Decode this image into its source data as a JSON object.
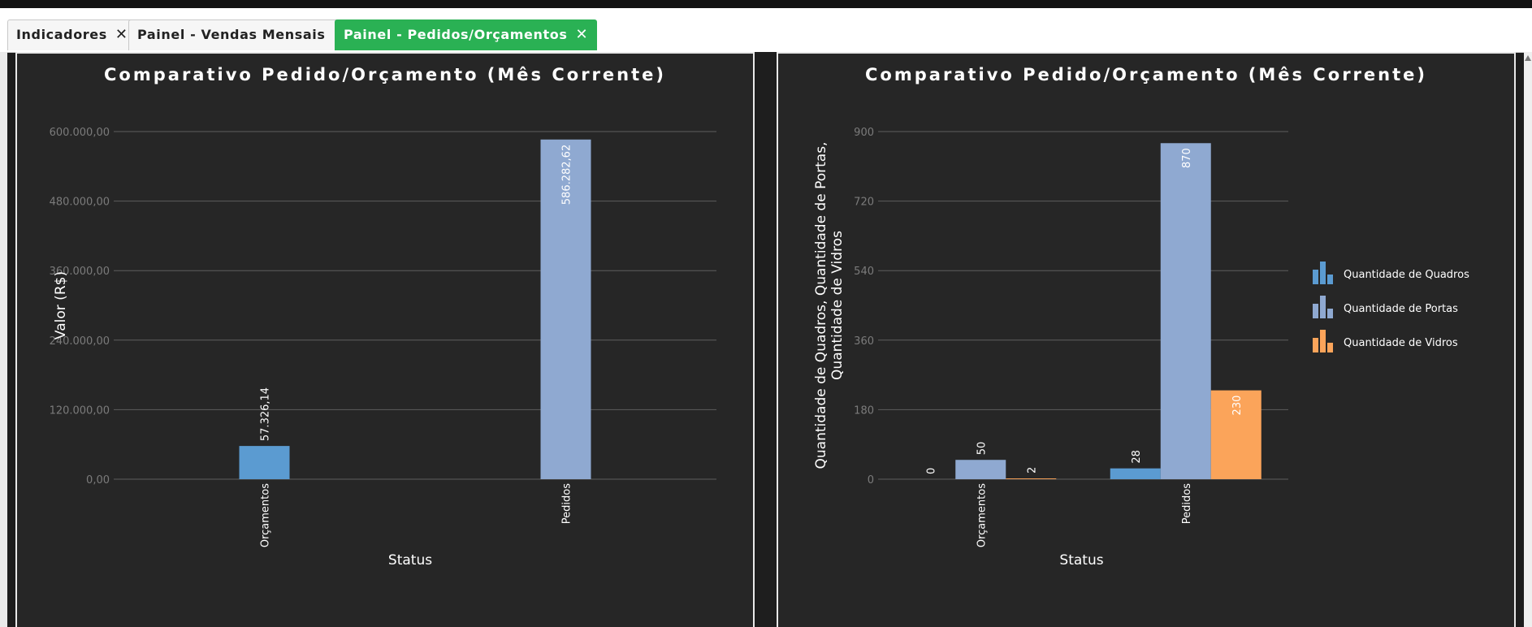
{
  "tabs": [
    {
      "label": "Indicadores",
      "close": "✕",
      "active": false
    },
    {
      "label": "Painel - Vendas Mensais",
      "close": "✕",
      "active": false
    },
    {
      "label": "Painel - Pedidos/Orçamentos",
      "close": "✕",
      "active": true
    }
  ],
  "colors": {
    "accent": "#2ab154",
    "quadros": "#5b9bd1",
    "portas": "#8fa9d1",
    "vidros": "#fba45a"
  },
  "chart_data": [
    {
      "type": "bar",
      "title": "Comparativo Pedido/Orçamento (Mês Corrente)",
      "xlabel": "Status",
      "ylabel": "Valor (R$)",
      "categories": [
        "Orçamentos",
        "Pedidos"
      ],
      "series": [
        {
          "values": [
            57326.14,
            586282.62
          ],
          "labels": [
            "57.326,14",
            "586.282,62"
          ],
          "color": "#5b9bd1,#8fa9d1"
        }
      ],
      "ylim": [
        0,
        600000
      ],
      "yticks": [
        0,
        120000,
        240000,
        360000,
        480000,
        600000
      ],
      "ytick_labels": [
        "0,00",
        "120.000,00",
        "240.000,00",
        "360.000,00",
        "480.000,00",
        "600.000,00"
      ],
      "grid": true,
      "legend": "none"
    },
    {
      "type": "bar",
      "title": "Comparativo Pedido/Orçamento (Mês Corrente)",
      "xlabel": "Status",
      "ylabel_lines": [
        "Quantidade de Quadros, Quantidade de Portas,",
        "Quantidade de Vidros"
      ],
      "categories": [
        "Orçamentos",
        "Pedidos"
      ],
      "series": [
        {
          "name": "Quantidade de Quadros",
          "values": [
            0,
            28
          ],
          "color": "#5b9bd1"
        },
        {
          "name": "Quantidade de Portas",
          "values": [
            50,
            870
          ],
          "color": "#8fa9d1"
        },
        {
          "name": "Quantidade de Vidros",
          "values": [
            2,
            230
          ],
          "color": "#fba45a"
        }
      ],
      "ylim": [
        0,
        900
      ],
      "yticks": [
        0,
        180,
        360,
        540,
        720,
        900
      ],
      "ytick_labels": [
        "0",
        "180",
        "360",
        "540",
        "720",
        "900"
      ],
      "grid": true,
      "legend": "right"
    }
  ]
}
